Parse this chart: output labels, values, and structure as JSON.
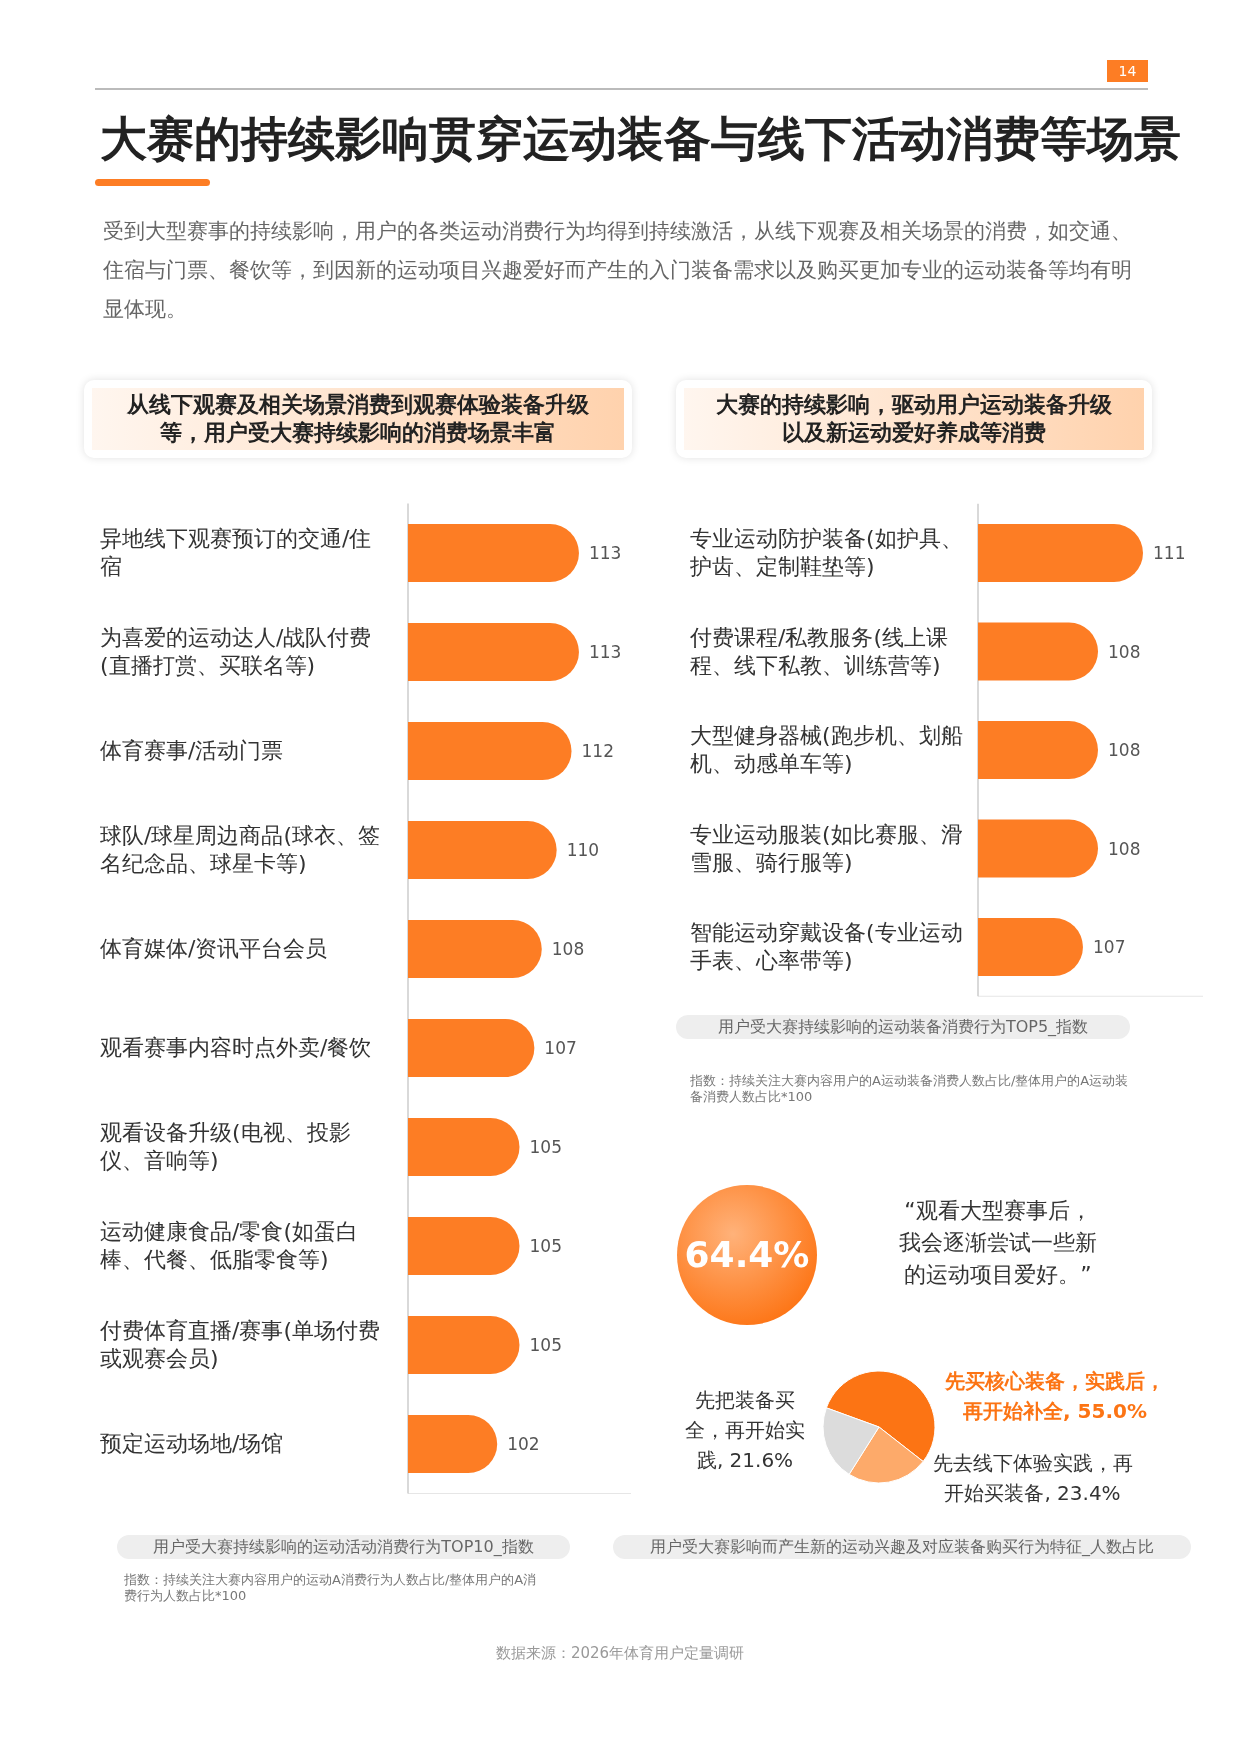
{
  "chart_data": [
    {
      "type": "other",
      "title": "大赛的持续影响贯穿运动装备与线下活动消费等场景",
      "subtitle": "受到大型赛事的持续影响，用户的各类运动消费行为均得到持续激活，从线下观赛及相关场景的消费，如交通、住宿与门票、餐饮等，到因新的运动项目兴趣爱好而产生的入门装备需求以及购买更加专业的运动装备等均有明显体现。",
      "annotations": [
        "14",
        "数据来源：2026年体育用户定量调研"
      ]
    },
    {
      "type": "bar",
      "orientation": "horizontal",
      "title": "从线下观赛及相关场景消费到观赛体验装备升级等，用户受大赛持续影响的消费场景丰富",
      "categories": [
        "异地线下观赛预订的交通/住宿",
        "为喜爱的运动达人/战队付费(直播打赏、买联名等)",
        "体育赛事/活动门票",
        "球队/球星周边商品(球衣、签名纪念品、球星卡等)",
        "体育媒体/资讯平台会员",
        "观看赛事内容时点外卖/餐饮",
        "观看设备升级(电视、投影仪、音响等)",
        "运动健康食品/零食(如蛋白棒、代餐、低脂零食等)",
        "付费体育直播/赛事(单场付费或观赛会员)",
        "预定运动场地/场馆"
      ],
      "values": [
        113,
        113,
        112,
        110,
        108,
        107,
        105,
        105,
        105,
        102
      ],
      "color": "#fd7d24",
      "data_labels": true,
      "xlim": [
        90,
        120
      ],
      "annotations": [
        "用户受大赛持续影响的运动活动消费行为TOP10_指数",
        "指数：持续关注大赛内容用户的运动A消费行为人数占比/整体用户的A消费行为人数占比*100"
      ]
    },
    {
      "type": "bar",
      "orientation": "horizontal",
      "title": "大赛的持续影响，驱动用户运动装备升级以及新运动爱好养成等消费",
      "categories": [
        "专业运动防护装备(如护具、护齿、定制鞋垫等)",
        "付费课程/私教服务(线上课程、线下私教、训练营等)",
        "大型健身器械(跑步机、划船机、动感单车等)",
        "专业运动服装(如比赛服、滑雪服、骑行服等)",
        "智能运动穿戴设备(专业运动手表、心率带等)"
      ],
      "values": [
        111,
        108,
        108,
        108,
        107
      ],
      "color": "#fd7d24",
      "data_labels": true,
      "xlim": [
        100,
        115
      ],
      "annotations": [
        "用户受大赛持续影响的运动装备消费行为TOP5_指数",
        "指数：持续关注大赛内容用户的A运动装备消费人数占比/整体用户的A运动装备消费人数占比*100"
      ]
    },
    {
      "type": "other",
      "annotations": [
        "64.4%",
        "“观看大型赛事后，我会逐渐尝试一些新的运动项目爱好。”"
      ]
    },
    {
      "type": "pie",
      "categories": [
        "先买核心装备，实践后，再开始补全",
        "先去线下体验实践，再开始买装备",
        "先把装备买全，再开始实践"
      ],
      "values": [
        55.0,
        23.4,
        21.6
      ],
      "value_labels": [
        "55.0%",
        "23.4%",
        "21.6%"
      ],
      "colors": [
        "#fc7414",
        "#fdaa6a",
        "#dcdcdc"
      ],
      "annotations": [
        "用户受大赛影响而产生新的运动兴趣及对应装备购买行为特征_人数占比"
      ]
    }
  ]
}
